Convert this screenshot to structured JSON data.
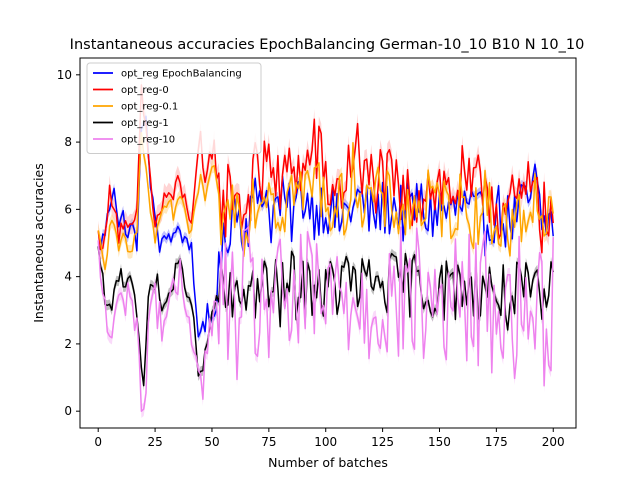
{
  "chart_data": {
    "type": "line",
    "title": "Instantaneous accuracies EpochBalancing German-10_10 B10 N 10_10",
    "xlabel": "Number of batches",
    "ylabel": "Instantaneous accuracies",
    "xlim": [
      -8,
      210
    ],
    "ylim": [
      -0.5,
      10.5
    ],
    "xticks": [
      0,
      25,
      50,
      75,
      100,
      125,
      150,
      175,
      200
    ],
    "yticks": [
      0,
      2,
      4,
      6,
      8,
      10
    ],
    "grid": false,
    "legend_position": "top-left",
    "series": [
      {
        "name": "opt_reg EpochBalancing",
        "color": "#0000ff",
        "band_color": "#8080ff",
        "keypoints": [
          [
            0,
            4.8
          ],
          [
            3,
            5.3
          ],
          [
            5,
            6.1
          ],
          [
            7,
            6.8
          ],
          [
            9,
            5.5
          ],
          [
            11,
            5.8
          ],
          [
            13,
            5.2
          ],
          [
            15,
            5.5
          ],
          [
            17,
            5.0
          ],
          [
            19,
            8.2
          ],
          [
            21,
            9.0
          ],
          [
            23,
            6.5
          ],
          [
            25,
            5.8
          ],
          [
            27,
            4.9
          ],
          [
            29,
            5.0
          ],
          [
            31,
            5.3
          ],
          [
            33,
            5.2
          ],
          [
            35,
            5.6
          ],
          [
            37,
            5.0
          ],
          [
            39,
            5.2
          ],
          [
            41,
            4.8
          ],
          [
            42,
            4.0
          ],
          [
            43,
            3.0
          ],
          [
            44,
            2.3
          ],
          [
            45,
            2.6
          ],
          [
            46,
            2.4
          ],
          [
            47,
            2.1
          ],
          [
            48,
            3.0
          ],
          [
            49,
            2.6
          ],
          [
            50,
            2.8
          ],
          [
            52,
            3.2
          ],
          [
            54,
            4.5
          ],
          [
            56,
            5.0
          ],
          [
            58,
            5.8
          ],
          [
            60,
            6.2
          ],
          [
            64,
            5.5
          ],
          [
            68,
            6.0
          ],
          [
            72,
            6.8
          ],
          [
            76,
            5.8
          ],
          [
            80,
            6.2
          ],
          [
            85,
            5.8
          ],
          [
            90,
            6.5
          ],
          [
            95,
            6.0
          ],
          [
            100,
            6.2
          ],
          [
            105,
            5.6
          ],
          [
            110,
            6.0
          ],
          [
            115,
            6.3
          ],
          [
            120,
            5.8
          ],
          [
            125,
            6.0
          ],
          [
            130,
            6.1
          ],
          [
            135,
            5.8
          ],
          [
            140,
            6.2
          ],
          [
            145,
            5.8
          ],
          [
            150,
            6.0
          ],
          [
            155,
            5.9
          ],
          [
            160,
            6.1
          ],
          [
            165,
            5.8
          ],
          [
            170,
            5.5
          ],
          [
            175,
            6.0
          ],
          [
            180,
            5.6
          ],
          [
            185,
            5.9
          ],
          [
            190,
            6.3
          ],
          [
            192,
            6.8
          ],
          [
            195,
            5.5
          ],
          [
            200,
            5.7
          ]
        ],
        "noise": 0.9,
        "band": 0.15
      },
      {
        "name": "opt_reg-0",
        "color": "#ff0000",
        "band_color": "#ffaaaa",
        "keypoints": [
          [
            0,
            5.2
          ],
          [
            3,
            5.0
          ],
          [
            5,
            6.5
          ],
          [
            7,
            6.3
          ],
          [
            9,
            5.3
          ],
          [
            11,
            5.6
          ],
          [
            13,
            5.3
          ],
          [
            15,
            5.3
          ],
          [
            17,
            6.0
          ],
          [
            19,
            9.4
          ],
          [
            21,
            8.4
          ],
          [
            23,
            6.8
          ],
          [
            25,
            5.6
          ],
          [
            27,
            5.8
          ],
          [
            29,
            6.3
          ],
          [
            31,
            6.5
          ],
          [
            33,
            6.3
          ],
          [
            35,
            6.8
          ],
          [
            37,
            6.5
          ],
          [
            39,
            6.0
          ],
          [
            41,
            5.8
          ],
          [
            43,
            7.0
          ],
          [
            45,
            8.0
          ],
          [
            47,
            6.5
          ],
          [
            49,
            7.5
          ],
          [
            51,
            8.0
          ],
          [
            53,
            6.4
          ],
          [
            55,
            5.8
          ],
          [
            57,
            6.5
          ],
          [
            60,
            6.8
          ],
          [
            64,
            5.8
          ],
          [
            68,
            7.0
          ],
          [
            72,
            6.8
          ],
          [
            75,
            8.2
          ],
          [
            78,
            6.5
          ],
          [
            82,
            6.8
          ],
          [
            86,
            7.5
          ],
          [
            90,
            6.9
          ],
          [
            95,
            8.0
          ],
          [
            100,
            6.8
          ],
          [
            105,
            6.5
          ],
          [
            110,
            7.0
          ],
          [
            113,
            8.3
          ],
          [
            116,
            6.6
          ],
          [
            120,
            7.0
          ],
          [
            125,
            6.8
          ],
          [
            130,
            6.6
          ],
          [
            135,
            6.2
          ],
          [
            140,
            6.5
          ],
          [
            145,
            6.8
          ],
          [
            150,
            6.7
          ],
          [
            155,
            6.5
          ],
          [
            160,
            6.8
          ],
          [
            165,
            6.3
          ],
          [
            170,
            7.0
          ],
          [
            175,
            6.1
          ],
          [
            180,
            5.9
          ],
          [
            185,
            6.2
          ],
          [
            190,
            6.5
          ],
          [
            192,
            7.6
          ],
          [
            195,
            5.7
          ],
          [
            200,
            5.8
          ]
        ],
        "noise": 1.1,
        "band": 0.3
      },
      {
        "name": "opt_reg-0.1",
        "color": "#ffa500",
        "band_color": "#ffd27f",
        "keypoints": [
          [
            0,
            5.2
          ],
          [
            3,
            4.2
          ],
          [
            5,
            5.6
          ],
          [
            7,
            5.3
          ],
          [
            9,
            4.7
          ],
          [
            11,
            5.2
          ],
          [
            13,
            5.0
          ],
          [
            15,
            5.0
          ],
          [
            17,
            5.6
          ],
          [
            19,
            8.0
          ],
          [
            21,
            7.4
          ],
          [
            23,
            5.8
          ],
          [
            25,
            5.2
          ],
          [
            27,
            5.4
          ],
          [
            29,
            6.0
          ],
          [
            31,
            6.2
          ],
          [
            33,
            5.8
          ],
          [
            35,
            6.4
          ],
          [
            37,
            6.0
          ],
          [
            39,
            5.5
          ],
          [
            41,
            5.4
          ],
          [
            43,
            6.2
          ],
          [
            45,
            6.8
          ],
          [
            47,
            6.0
          ],
          [
            49,
            7.2
          ],
          [
            51,
            7.0
          ],
          [
            53,
            6.2
          ],
          [
            55,
            5.4
          ],
          [
            57,
            6.0
          ],
          [
            60,
            6.3
          ],
          [
            64,
            5.6
          ],
          [
            68,
            6.4
          ],
          [
            72,
            6.3
          ],
          [
            75,
            7.2
          ],
          [
            78,
            6.0
          ],
          [
            82,
            6.2
          ],
          [
            86,
            6.8
          ],
          [
            90,
            6.3
          ],
          [
            95,
            7.0
          ],
          [
            100,
            6.3
          ],
          [
            105,
            6.0
          ],
          [
            110,
            6.3
          ],
          [
            113,
            7.4
          ],
          [
            116,
            6.1
          ],
          [
            120,
            6.4
          ],
          [
            125,
            6.2
          ],
          [
            130,
            6.1
          ],
          [
            135,
            5.9
          ],
          [
            140,
            6.0
          ],
          [
            145,
            6.2
          ],
          [
            150,
            6.1
          ],
          [
            155,
            6.0
          ],
          [
            160,
            6.2
          ],
          [
            165,
            5.8
          ],
          [
            170,
            6.2
          ],
          [
            175,
            5.6
          ],
          [
            180,
            5.4
          ],
          [
            185,
            5.7
          ],
          [
            190,
            5.9
          ],
          [
            192,
            7.0
          ],
          [
            195,
            5.5
          ],
          [
            200,
            5.7
          ]
        ],
        "noise": 1.0,
        "band": 0.2
      },
      {
        "name": "opt_reg-1",
        "color": "#000000",
        "band_color": "#7f7f7f",
        "keypoints": [
          [
            0,
            4.7
          ],
          [
            2,
            3.8
          ],
          [
            4,
            3.0
          ],
          [
            6,
            2.9
          ],
          [
            8,
            4.0
          ],
          [
            10,
            4.1
          ],
          [
            12,
            3.8
          ],
          [
            14,
            4.2
          ],
          [
            16,
            3.6
          ],
          [
            18,
            2.0
          ],
          [
            19,
            1.0
          ],
          [
            20,
            0.8
          ],
          [
            21,
            1.8
          ],
          [
            22,
            3.4
          ],
          [
            24,
            4.0
          ],
          [
            26,
            3.8
          ],
          [
            28,
            3.0
          ],
          [
            30,
            3.3
          ],
          [
            32,
            3.6
          ],
          [
            34,
            4.1
          ],
          [
            36,
            4.3
          ],
          [
            38,
            3.9
          ],
          [
            40,
            3.5
          ],
          [
            42,
            2.5
          ],
          [
            44,
            1.3
          ],
          [
            45,
            1.0
          ],
          [
            46,
            1.2
          ],
          [
            47,
            1.6
          ],
          [
            48,
            2.0
          ],
          [
            50,
            3.0
          ],
          [
            55,
            3.6
          ],
          [
            60,
            3.0
          ],
          [
            65,
            3.8
          ],
          [
            70,
            3.5
          ],
          [
            75,
            3.7
          ],
          [
            80,
            3.4
          ],
          [
            85,
            3.8
          ],
          [
            90,
            3.5
          ],
          [
            95,
            3.9
          ],
          [
            100,
            3.5
          ],
          [
            105,
            3.7
          ],
          [
            110,
            4.0
          ],
          [
            115,
            3.6
          ],
          [
            120,
            3.8
          ],
          [
            125,
            3.9
          ],
          [
            130,
            3.7
          ],
          [
            135,
            3.8
          ],
          [
            140,
            3.8
          ],
          [
            145,
            3.6
          ],
          [
            150,
            3.7
          ],
          [
            155,
            3.5
          ],
          [
            160,
            3.8
          ],
          [
            165,
            3.6
          ],
          [
            170,
            3.8
          ],
          [
            175,
            3.5
          ],
          [
            180,
            3.3
          ],
          [
            185,
            3.5
          ],
          [
            190,
            3.4
          ],
          [
            195,
            3.2
          ],
          [
            200,
            3.6
          ]
        ],
        "noise": 1.0,
        "band": 0.15
      },
      {
        "name": "opt_reg-10",
        "color": "#ee82ee",
        "band_color": "#f5b5f5",
        "keypoints": [
          [
            0,
            4.6
          ],
          [
            2,
            3.6
          ],
          [
            4,
            2.5
          ],
          [
            6,
            2.2
          ],
          [
            8,
            3.0
          ],
          [
            10,
            3.2
          ],
          [
            12,
            3.4
          ],
          [
            14,
            3.6
          ],
          [
            16,
            2.9
          ],
          [
            18,
            1.4
          ],
          [
            19,
            0.4
          ],
          [
            20,
            0.1
          ],
          [
            21,
            0.6
          ],
          [
            22,
            2.6
          ],
          [
            24,
            3.6
          ],
          [
            26,
            3.0
          ],
          [
            28,
            2.7
          ],
          [
            30,
            2.9
          ],
          [
            32,
            3.2
          ],
          [
            34,
            3.5
          ],
          [
            36,
            3.9
          ],
          [
            38,
            3.4
          ],
          [
            40,
            3.0
          ],
          [
            42,
            2.1
          ],
          [
            44,
            1.0
          ],
          [
            45,
            0.8
          ],
          [
            46,
            1.0
          ],
          [
            47,
            1.3
          ],
          [
            48,
            1.8
          ],
          [
            50,
            2.8
          ],
          [
            55,
            3.2
          ],
          [
            60,
            2.8
          ],
          [
            65,
            3.4
          ],
          [
            70,
            3.1
          ],
          [
            75,
            3.3
          ],
          [
            80,
            3.0
          ],
          [
            85,
            3.4
          ],
          [
            90,
            3.1
          ],
          [
            95,
            3.5
          ],
          [
            100,
            3.1
          ],
          [
            105,
            3.3
          ],
          [
            110,
            3.6
          ],
          [
            115,
            3.2
          ],
          [
            120,
            3.4
          ],
          [
            125,
            3.5
          ],
          [
            130,
            3.3
          ],
          [
            135,
            3.4
          ],
          [
            140,
            3.4
          ],
          [
            145,
            3.2
          ],
          [
            150,
            3.3
          ],
          [
            155,
            3.1
          ],
          [
            160,
            3.4
          ],
          [
            165,
            3.2
          ],
          [
            170,
            3.4
          ],
          [
            175,
            3.1
          ],
          [
            180,
            2.9
          ],
          [
            185,
            3.1
          ],
          [
            190,
            3.0
          ],
          [
            195,
            2.8
          ],
          [
            200,
            3.2
          ]
        ],
        "noise": 2.2,
        "band": 0.2
      }
    ]
  }
}
